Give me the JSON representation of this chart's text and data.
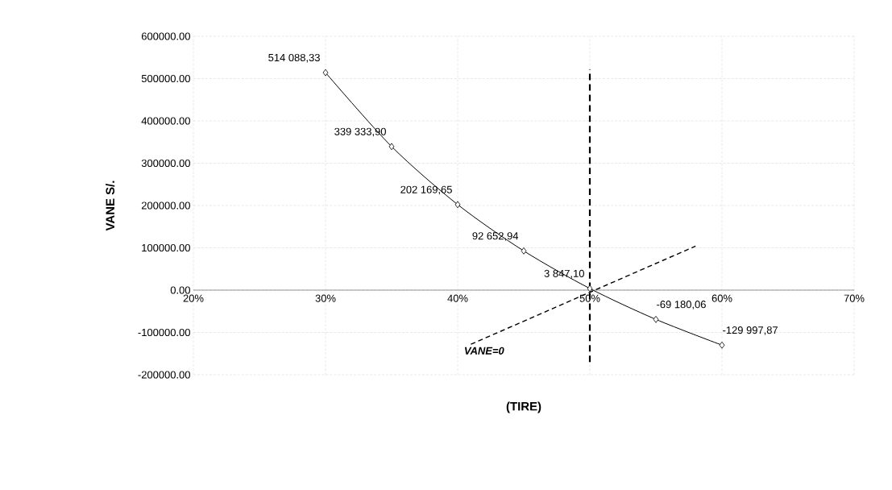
{
  "chart_data": {
    "type": "line",
    "xlabel": "(TIRE)",
    "ylabel": "VANE S/.",
    "x": [
      30,
      35,
      40,
      45,
      50,
      55,
      60
    ],
    "series": [
      {
        "color": "#000000",
        "values": [
          514088.33,
          339333.9,
          202169.65,
          92652.94,
          3847.1,
          -69180.06,
          -129997.87
        ],
        "value_labels": [
          "514 088,33",
          "339 333,90",
          "202 169,65",
          "92 652,94",
          "3 847,10",
          "-69 180,06",
          "-129 997,87"
        ]
      }
    ],
    "xlim": [
      20,
      70
    ],
    "xticks": [
      {
        "value": 20,
        "label": "20%"
      },
      {
        "value": 30,
        "label": "30%"
      },
      {
        "value": 40,
        "label": "40%"
      },
      {
        "value": 50,
        "label": "50%"
      },
      {
        "value": 60,
        "label": "60%"
      },
      {
        "value": 70,
        "label": "70%"
      }
    ],
    "ylim": [
      -200000,
      600000
    ],
    "yticks": [
      {
        "value": -200000,
        "label": "-200000.00"
      },
      {
        "value": -100000,
        "label": "-100000.00"
      },
      {
        "value": 0,
        "label": "0.00"
      },
      {
        "value": 100000,
        "label": "100000.00"
      },
      {
        "value": 200000,
        "label": "200000.00"
      },
      {
        "value": 300000,
        "label": "300000.00"
      },
      {
        "value": 400000,
        "label": "400000.00"
      },
      {
        "value": 500000,
        "label": "500000.00"
      },
      {
        "value": 600000,
        "label": "600000.00"
      }
    ],
    "ref_lines": [
      {
        "axis": "x",
        "value": 50,
        "line_style": "dashed",
        "color": "#000000"
      }
    ],
    "annotations": [
      "VANE=0"
    ],
    "grid": true,
    "marker": "diamond",
    "line_style": "solid"
  }
}
